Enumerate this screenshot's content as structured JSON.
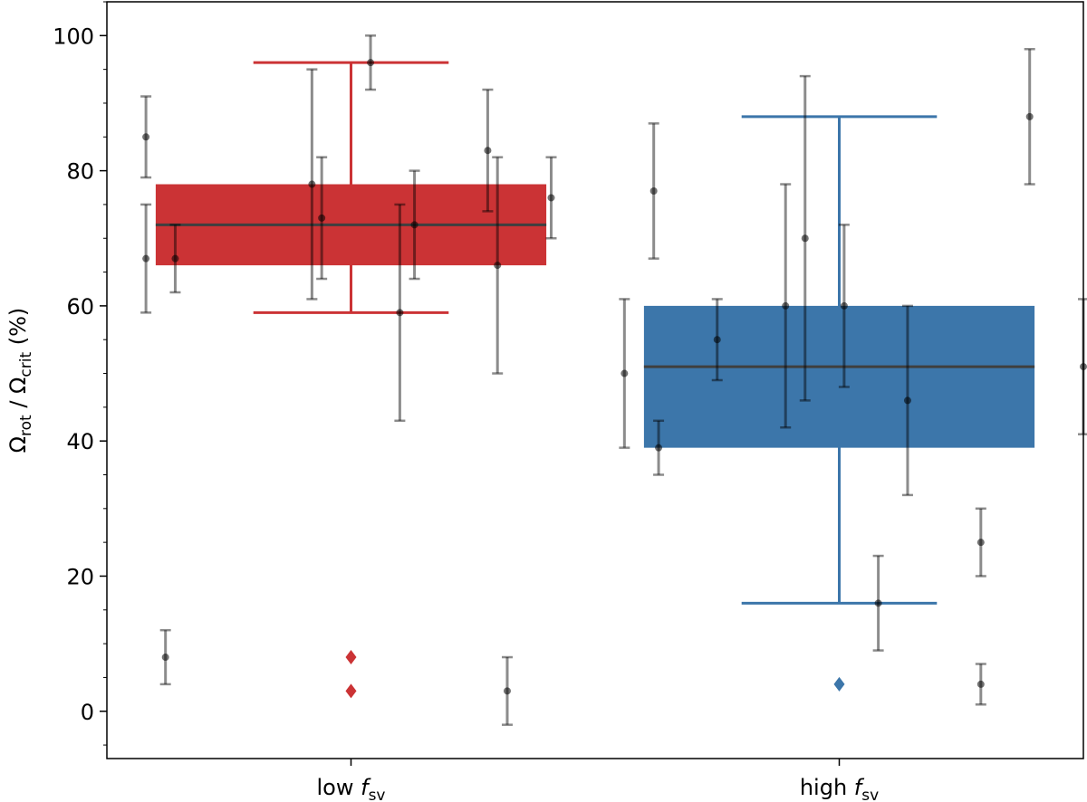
{
  "chart_data": {
    "type": "boxplot",
    "title": "",
    "ylabel": {
      "main": "Ω",
      "sub1": "rot",
      "slash": " / ",
      "main2": "Ω",
      "sub2": "crit",
      "unit": " (%)"
    },
    "ylim": [
      -7,
      105
    ],
    "yticks": [
      0,
      20,
      40,
      60,
      80,
      100
    ],
    "yminor_step": 5,
    "categories": [
      {
        "label": "low ",
        "label_var": "f",
        "label_sub": "sv",
        "color": "#cb3335",
        "box": {
          "q1": 66,
          "median": 72,
          "q3": 78,
          "whisker_low": 59,
          "whisker_high": 96
        },
        "outliers": [
          8,
          3
        ],
        "points": [
          {
            "offset": -0.42,
            "value": 67,
            "err_low": 8,
            "err_high": 8
          },
          {
            "offset": -0.42,
            "value": 85,
            "err_low": 6,
            "err_high": 6
          },
          {
            "offset": -0.36,
            "value": 67,
            "err_low": 5,
            "err_high": 5
          },
          {
            "offset": -0.08,
            "value": 78,
            "err_low": 17,
            "err_high": 17
          },
          {
            "offset": -0.06,
            "value": 73,
            "err_low": 9,
            "err_high": 9
          },
          {
            "offset": 0.04,
            "value": 96,
            "err_low": 4,
            "err_high": 4
          },
          {
            "offset": 0.1,
            "value": 59,
            "err_low": 16,
            "err_high": 16
          },
          {
            "offset": 0.13,
            "value": 72,
            "err_low": 8,
            "err_high": 8
          },
          {
            "offset": 0.28,
            "value": 83,
            "err_low": 9,
            "err_high": 9
          },
          {
            "offset": 0.3,
            "value": 66,
            "err_low": 16,
            "err_high": 16
          },
          {
            "offset": 0.41,
            "value": 76,
            "err_low": 6,
            "err_high": 6
          },
          {
            "offset": -0.38,
            "value": 8,
            "err_low": 4,
            "err_high": 4
          },
          {
            "offset": 0.32,
            "value": 3,
            "err_low": 5,
            "err_high": 5
          }
        ]
      },
      {
        "label": "high ",
        "label_var": "f",
        "label_sub": "sv",
        "color": "#3c76aa",
        "box": {
          "q1": 39,
          "median": 51,
          "q3": 60,
          "whisker_low": 16,
          "whisker_high": 88
        },
        "outliers": [
          4
        ],
        "points": [
          {
            "offset": -0.44,
            "value": 50,
            "err_low": 11,
            "err_high": 11
          },
          {
            "offset": -0.38,
            "value": 77,
            "err_low": 10,
            "err_high": 10
          },
          {
            "offset": -0.37,
            "value": 39,
            "err_low": 4,
            "err_high": 4
          },
          {
            "offset": -0.25,
            "value": 55,
            "err_low": 6,
            "err_high": 6
          },
          {
            "offset": -0.11,
            "value": 60,
            "err_low": 18,
            "err_high": 18
          },
          {
            "offset": -0.07,
            "value": 70,
            "err_low": 24,
            "err_high": 24
          },
          {
            "offset": 0.01,
            "value": 60,
            "err_low": 12,
            "err_high": 12
          },
          {
            "offset": 0.08,
            "value": 16,
            "err_low": 7,
            "err_high": 7
          },
          {
            "offset": 0.14,
            "value": 46,
            "err_low": 14,
            "err_high": 14
          },
          {
            "offset": 0.29,
            "value": 25,
            "err_low": 5,
            "err_high": 5
          },
          {
            "offset": 0.29,
            "value": 4,
            "err_low": 3,
            "err_high": 3
          },
          {
            "offset": 0.39,
            "value": 88,
            "err_low": 10,
            "err_high": 10
          },
          {
            "offset": 0.5,
            "value": 51,
            "err_low": 10,
            "err_high": 10
          }
        ]
      }
    ]
  }
}
